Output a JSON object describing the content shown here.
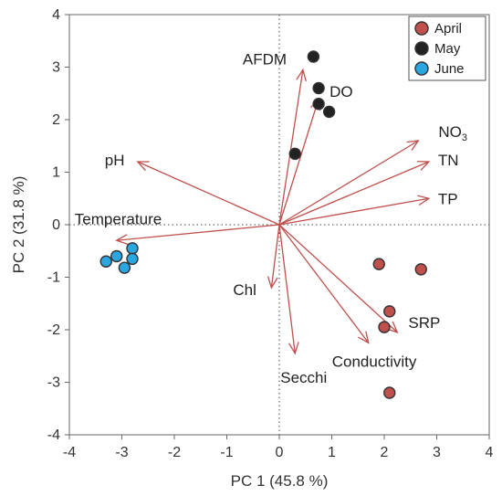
{
  "chart_data": {
    "type": "scatter",
    "xlabel": "PC 1  (45.8 %)",
    "ylabel": "PC 2  (31.8 %)",
    "xlim": [
      -4,
      4
    ],
    "ylim": [
      -4,
      4
    ],
    "xticks": [
      "-4",
      "-3",
      "-2",
      "-1",
      "0",
      "1",
      "2",
      "3",
      "4"
    ],
    "yticks": [
      "-4",
      "-3",
      "-2",
      "-1",
      "0",
      "1",
      "2",
      "3",
      "4"
    ],
    "reference_lines": "dotted lines at x=0 and y=0",
    "legend_position": "top-right",
    "series": [
      {
        "name": "April",
        "color": "#c0504d",
        "points": [
          [
            1.9,
            -0.75
          ],
          [
            2.7,
            -0.85
          ],
          [
            2.1,
            -1.65
          ],
          [
            2.0,
            -1.95
          ],
          [
            2.1,
            -3.2
          ]
        ]
      },
      {
        "name": "May",
        "color": "#222222",
        "points": [
          [
            0.65,
            3.2
          ],
          [
            0.75,
            2.6
          ],
          [
            0.75,
            2.3
          ],
          [
            0.95,
            2.15
          ],
          [
            0.3,
            1.35
          ]
        ]
      },
      {
        "name": "June",
        "color": "#2aa6e0",
        "points": [
          [
            -3.3,
            -0.7
          ],
          [
            -3.1,
            -0.6
          ],
          [
            -2.95,
            -0.82
          ],
          [
            -2.8,
            -0.45
          ],
          [
            -2.8,
            -0.65
          ]
        ]
      }
    ],
    "loadings": {
      "color": "#c0504d",
      "vectors": [
        {
          "label": "AFDM",
          "x": 0.45,
          "y": 2.95
        },
        {
          "label": "DO",
          "x": 0.75,
          "y": 2.4
        },
        {
          "label": "NO3",
          "label_main": "NO",
          "label_sub": "3",
          "x": 2.65,
          "y": 1.6
        },
        {
          "label": "TN",
          "x": 2.85,
          "y": 1.2
        },
        {
          "label": "TP",
          "x": 2.85,
          "y": 0.5
        },
        {
          "label": "pH",
          "x": -2.7,
          "y": 1.2
        },
        {
          "label": "Temperature",
          "x": -3.1,
          "y": -0.3
        },
        {
          "label": "Chl",
          "x": -0.15,
          "y": -1.2
        },
        {
          "label": "Secchi",
          "x": 0.3,
          "y": -2.45
        },
        {
          "label": "SRP",
          "x": 2.25,
          "y": -2.05
        },
        {
          "label": "Conductivity",
          "x": 1.7,
          "y": -2.25
        }
      ]
    }
  }
}
